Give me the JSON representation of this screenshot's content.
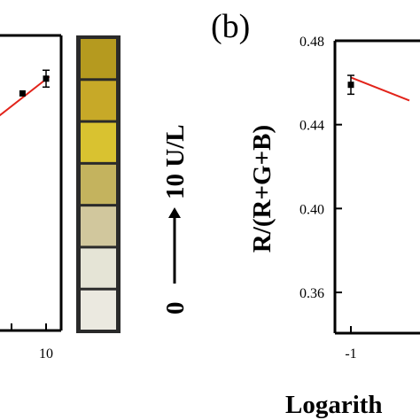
{
  "chart_data": [
    {
      "type": "scatter",
      "title": "",
      "xlabel": "",
      "ylabel": "",
      "x_ticks": [
        "10"
      ],
      "series": [
        {
          "style": "points-with-error-bars",
          "x": [
            6.5,
            10
          ],
          "y": [
            0.4525,
            0.4595
          ],
          "err": [
            0,
            0.004
          ]
        }
      ],
      "fit": {
        "color": "#e2231a",
        "from": [
          1.5,
          0.438
        ],
        "to": [
          10.5,
          0.4605
        ]
      },
      "colorimetric_strip": {
        "colors": [
          "#b59a1f",
          "#c7a928",
          "#d9c230",
          "#c4b35e",
          "#d1c79d",
          "#e5e4d6",
          "#ebe9e0"
        ],
        "label_left": "0",
        "label_right": "10 U/L"
      }
    },
    {
      "type": "scatter",
      "panel_label": "(b)",
      "title": "",
      "ylabel": "R/(R+G+B)",
      "xlabel": "Logarith",
      "ylim": [
        0.34,
        0.48
      ],
      "y_ticks": [
        "0.48",
        "0.44",
        "0.40",
        "0.36"
      ],
      "x_ticks": [
        "-1"
      ],
      "series": [
        {
          "style": "points-with-error-bars",
          "x": [
            -1
          ],
          "y": [
            0.459
          ],
          "err": [
            0.0045
          ]
        }
      ],
      "fit": {
        "color": "#e2231a",
        "from": [
          -1,
          0.4625
        ],
        "to": [
          -0.4,
          0.4515
        ]
      }
    }
  ]
}
